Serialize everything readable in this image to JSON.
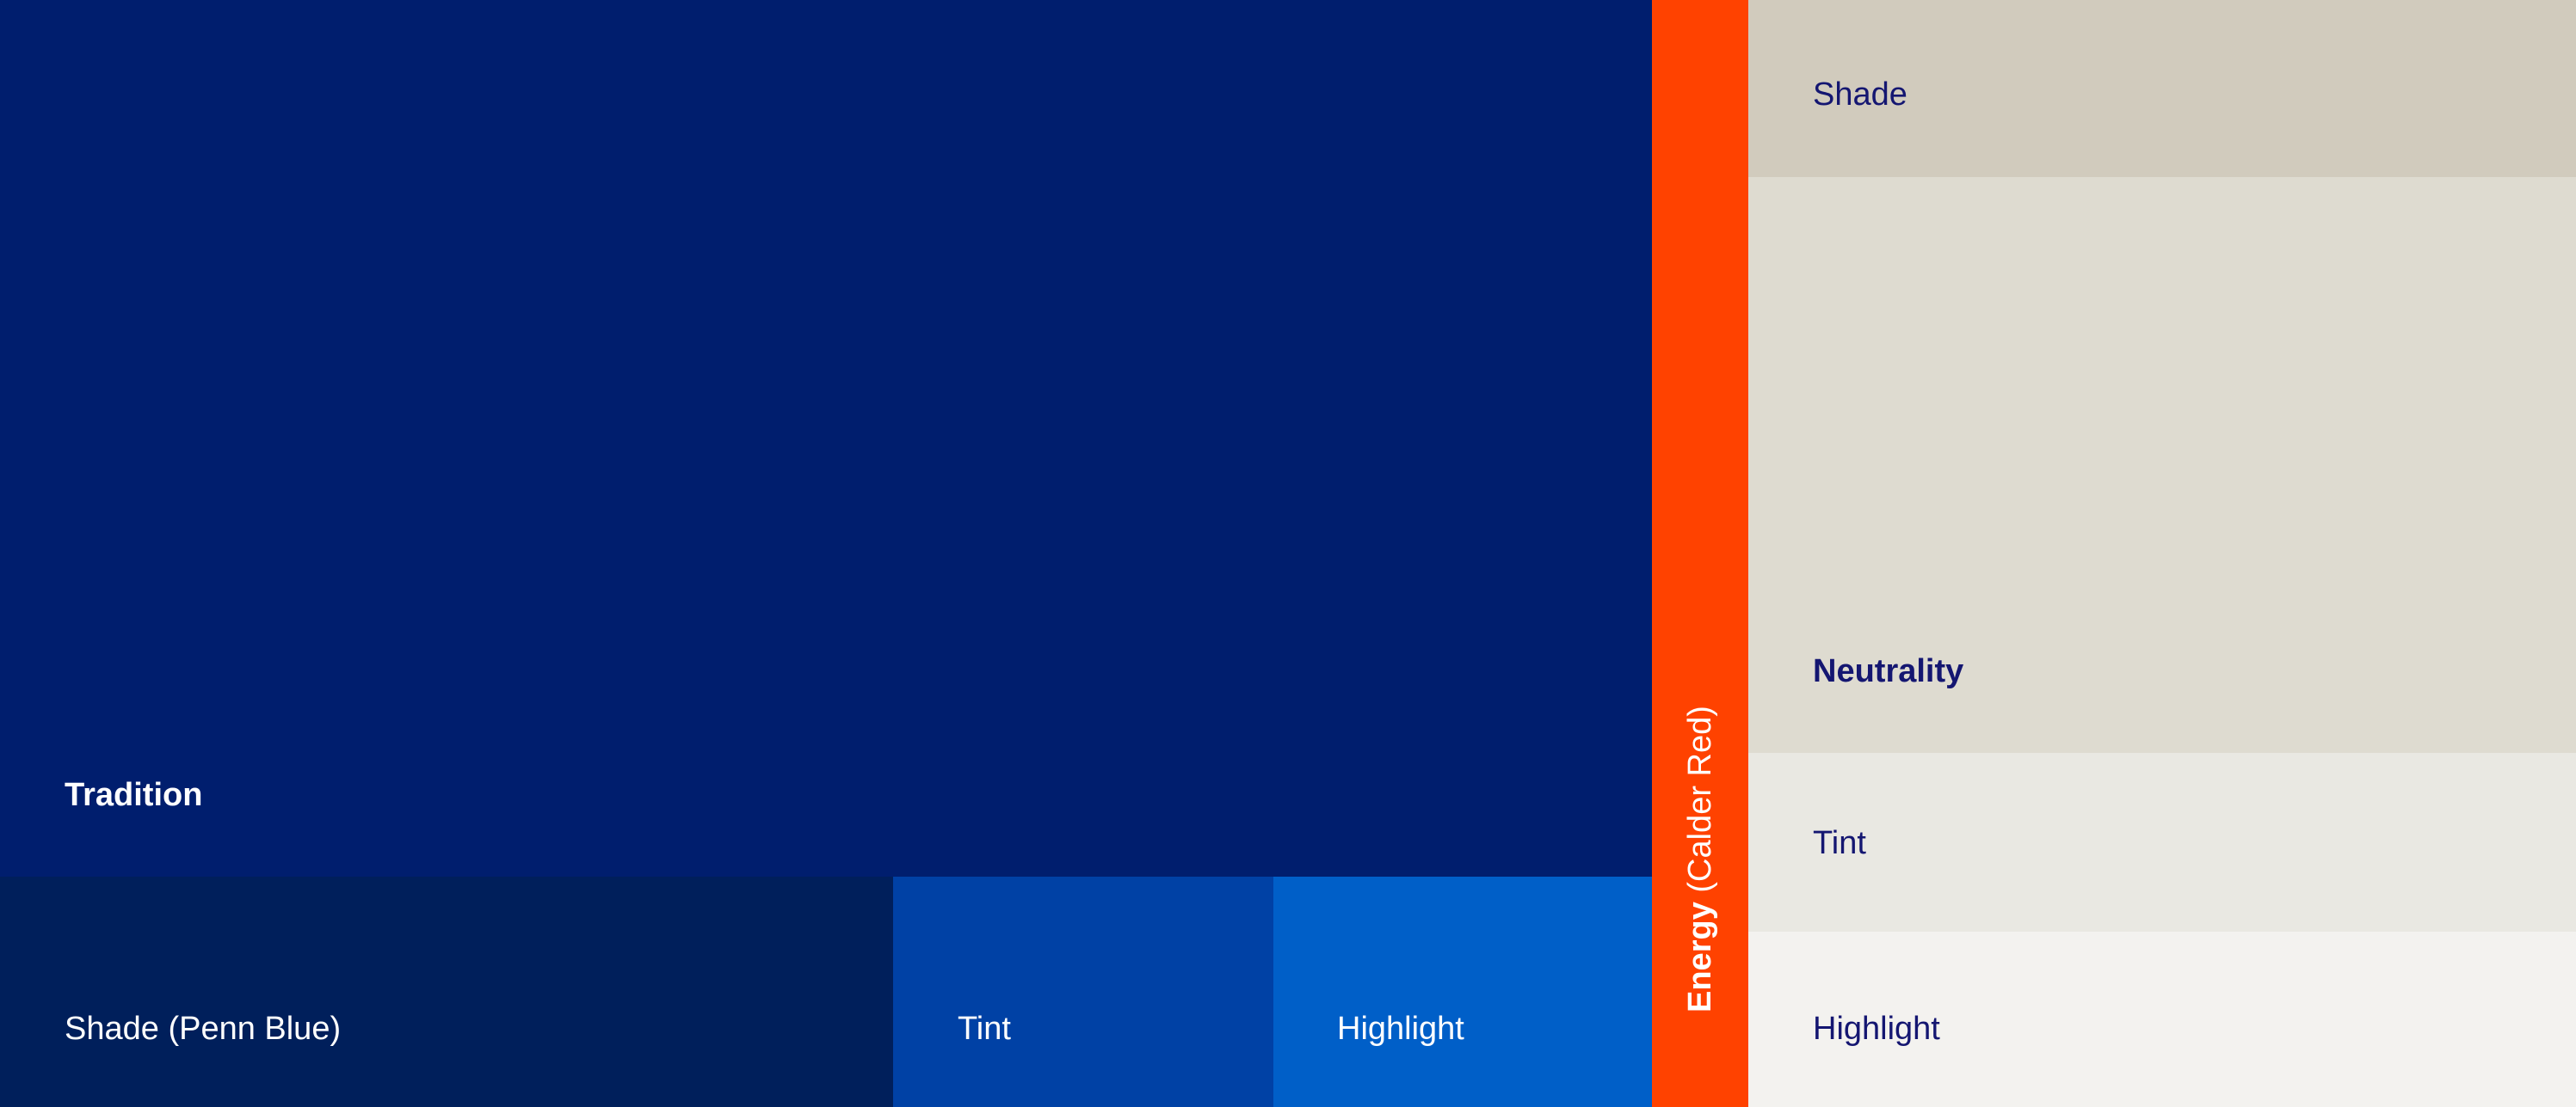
{
  "colors": {
    "tradition": "#001E6E",
    "blue_shade": "#001F5B",
    "blue_tint": "#0041A5",
    "blue_highlight": "#005FC8",
    "energy": "#FF4200",
    "neutral_shade": "#D1CBBD",
    "neutrality": "#DEDBD0",
    "neutral_tint": "#E9E8E2",
    "neutral_highlight": "#F3F2EF",
    "light_text": "#FFFFFF",
    "dark_text": "#141671"
  },
  "blue": {
    "main_label": "Tradition",
    "shade_label": "Shade (Penn Blue)",
    "tint_label": "Tint",
    "highlight_label": "Highlight"
  },
  "energy": {
    "label_bold": "Energy",
    "label_regular": " (Calder Red)"
  },
  "neutral": {
    "shade_label": "Shade",
    "main_label": "Neutrality",
    "tint_label": "Tint",
    "highlight_label": "Highlight"
  }
}
